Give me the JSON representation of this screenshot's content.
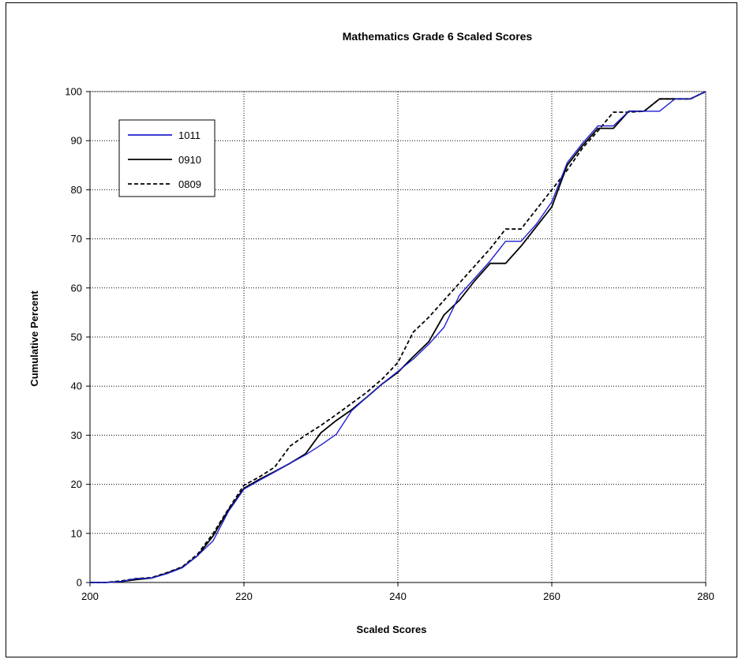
{
  "chart_data": {
    "type": "line",
    "title": "Mathematics Grade 6 Scaled Scores",
    "xlabel": "Scaled Scores",
    "ylabel": "Cumulative Percent",
    "xlim": [
      200,
      280
    ],
    "ylim": [
      0,
      100
    ],
    "xticks": [
      200,
      220,
      240,
      260,
      280
    ],
    "yticks": [
      0,
      10,
      20,
      30,
      40,
      50,
      60,
      70,
      80,
      90,
      100
    ],
    "grid": true,
    "legend_position": "top-left",
    "series": [
      {
        "name": "1011",
        "color": "#1f1fd0",
        "dash": "solid",
        "points": [
          [
            200,
            0
          ],
          [
            202,
            0
          ],
          [
            204,
            0.2
          ],
          [
            206,
            0.8
          ],
          [
            208,
            0.9
          ],
          [
            210,
            1.8
          ],
          [
            212,
            3.0
          ],
          [
            214,
            5.5
          ],
          [
            216,
            8.5
          ],
          [
            218,
            14.5
          ],
          [
            220,
            19.0
          ],
          [
            222,
            20.8
          ],
          [
            224,
            22.5
          ],
          [
            226,
            24.3
          ],
          [
            228,
            26.0
          ],
          [
            230,
            28.0
          ],
          [
            232,
            30.2
          ],
          [
            234,
            35.0
          ],
          [
            236,
            37.8
          ],
          [
            238,
            40.5
          ],
          [
            240,
            43.0
          ],
          [
            242,
            45.5
          ],
          [
            244,
            48.5
          ],
          [
            246,
            52.0
          ],
          [
            248,
            58.5
          ],
          [
            250,
            62.0
          ],
          [
            252,
            65.5
          ],
          [
            254,
            69.5
          ],
          [
            256,
            69.5
          ],
          [
            258,
            73.0
          ],
          [
            260,
            77.5
          ],
          [
            262,
            85.5
          ],
          [
            264,
            89.5
          ],
          [
            266,
            93.0
          ],
          [
            268,
            93.0
          ],
          [
            270,
            96.0
          ],
          [
            272,
            96.0
          ],
          [
            274,
            96.0
          ],
          [
            276,
            98.5
          ],
          [
            278,
            98.5
          ],
          [
            280,
            100
          ]
        ]
      },
      {
        "name": "0910",
        "color": "#000000",
        "dash": "solid",
        "points": [
          [
            200,
            0
          ],
          [
            202,
            0
          ],
          [
            204,
            0.2
          ],
          [
            206,
            0.6
          ],
          [
            208,
            0.9
          ],
          [
            210,
            1.9
          ],
          [
            212,
            3.1
          ],
          [
            214,
            5.5
          ],
          [
            216,
            9.5
          ],
          [
            218,
            14.8
          ],
          [
            220,
            19.2
          ],
          [
            222,
            21.0
          ],
          [
            224,
            22.6
          ],
          [
            226,
            24.3
          ],
          [
            228,
            26.2
          ],
          [
            230,
            30.5
          ],
          [
            232,
            33.0
          ],
          [
            234,
            35.2
          ],
          [
            236,
            37.8
          ],
          [
            238,
            40.5
          ],
          [
            240,
            42.8
          ],
          [
            242,
            46.0
          ],
          [
            244,
            49.0
          ],
          [
            246,
            54.5
          ],
          [
            248,
            57.5
          ],
          [
            250,
            61.5
          ],
          [
            252,
            65.0
          ],
          [
            254,
            65.0
          ],
          [
            256,
            68.5
          ],
          [
            258,
            72.5
          ],
          [
            260,
            76.5
          ],
          [
            262,
            85.0
          ],
          [
            264,
            89.0
          ],
          [
            266,
            92.5
          ],
          [
            268,
            92.5
          ],
          [
            270,
            96.0
          ],
          [
            272,
            96.0
          ],
          [
            274,
            98.5
          ],
          [
            276,
            98.5
          ],
          [
            278,
            98.5
          ],
          [
            280,
            100
          ]
        ]
      },
      {
        "name": "0809",
        "color": "#000000",
        "dash": "dashed",
        "points": [
          [
            200,
            0
          ],
          [
            202,
            0
          ],
          [
            204,
            0.3
          ],
          [
            206,
            0.8
          ],
          [
            208,
            1.0
          ],
          [
            210,
            2.0
          ],
          [
            212,
            3.2
          ],
          [
            214,
            5.8
          ],
          [
            216,
            10.0
          ],
          [
            218,
            15.0
          ],
          [
            220,
            19.8
          ],
          [
            222,
            21.5
          ],
          [
            224,
            23.5
          ],
          [
            226,
            27.8
          ],
          [
            228,
            30.0
          ],
          [
            230,
            32.0
          ],
          [
            232,
            34.2
          ],
          [
            234,
            36.5
          ],
          [
            236,
            38.8
          ],
          [
            238,
            41.5
          ],
          [
            240,
            44.8
          ],
          [
            242,
            51.0
          ],
          [
            244,
            54.0
          ],
          [
            246,
            57.5
          ],
          [
            248,
            61.0
          ],
          [
            250,
            64.5
          ],
          [
            252,
            68.0
          ],
          [
            254,
            72.0
          ],
          [
            256,
            72.0
          ],
          [
            258,
            76.0
          ],
          [
            260,
            80.0
          ],
          [
            262,
            84.0
          ],
          [
            264,
            88.5
          ],
          [
            266,
            92.0
          ],
          [
            268,
            95.8
          ],
          [
            270,
            95.8
          ],
          [
            272,
            96.0
          ],
          [
            274,
            98.5
          ],
          [
            276,
            98.5
          ],
          [
            278,
            98.5
          ],
          [
            280,
            100
          ]
        ]
      }
    ]
  }
}
